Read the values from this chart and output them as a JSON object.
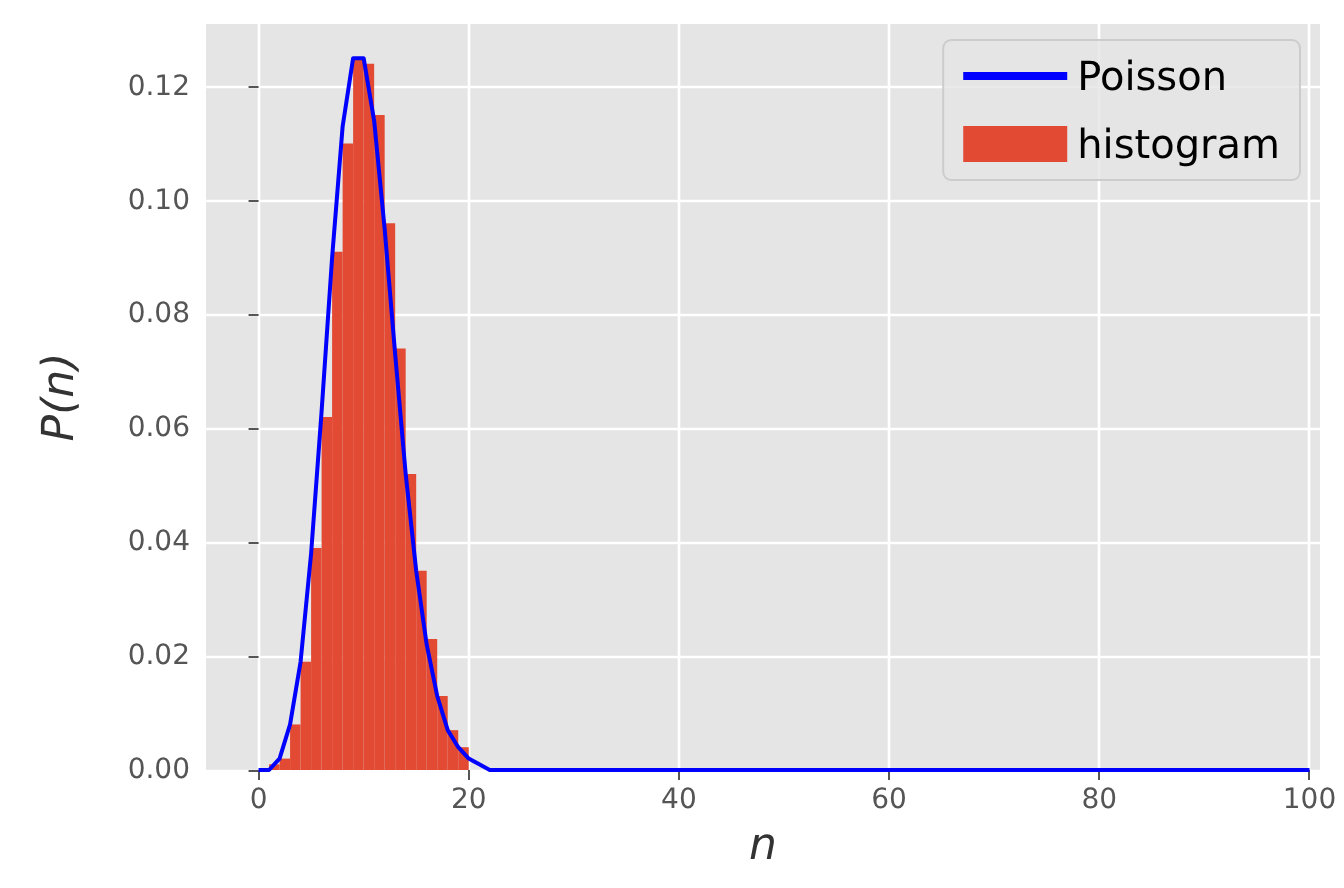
{
  "chart_data": {
    "type": "histogram",
    "xlabel": "n",
    "ylabel": "P(n)",
    "grid": true,
    "legend": "top right",
    "xlim": [
      -5,
      101
    ],
    "ylim": [
      0,
      0.131
    ],
    "xticks": [
      0,
      20,
      40,
      60,
      80,
      100
    ],
    "yticks": [
      {
        "value": 0,
        "label": "0.00"
      },
      {
        "value": 0.02,
        "label": "0.02"
      },
      {
        "value": 0.04,
        "label": "0.04"
      },
      {
        "value": 0.06,
        "label": "0.06"
      },
      {
        "value": 0.08,
        "label": "0.08"
      },
      {
        "value": 0.1,
        "label": "0.10"
      },
      {
        "value": 0.12,
        "label": "0.12"
      }
    ],
    "series": [
      {
        "name": "histogram",
        "color": "#e24a33",
        "bins": [
          1,
          2,
          3,
          4,
          5,
          6,
          7,
          8,
          9,
          10,
          11,
          12,
          13,
          14,
          15,
          16,
          17,
          18,
          19,
          20
        ],
        "values": [
          0.001,
          0.002,
          0.008,
          0.019,
          0.039,
          0.062,
          0.091,
          0.11,
          0.125,
          0.124,
          0.115,
          0.096,
          0.074,
          0.052,
          0.035,
          0.023,
          0.013,
          0.007,
          0.004
        ]
      },
      {
        "type": "line",
        "name": "Poisson",
        "color": "#0000ff",
        "x": [
          0,
          1,
          2,
          3,
          4,
          5,
          6,
          7,
          8,
          9,
          10,
          11,
          12,
          13,
          14,
          15,
          16,
          17,
          18,
          19,
          20,
          21,
          22,
          23,
          24,
          25,
          100
        ],
        "values": [
          0,
          0,
          0.002,
          0.008,
          0.019,
          0.038,
          0.063,
          0.09,
          0.113,
          0.125,
          0.125,
          0.114,
          0.095,
          0.073,
          0.052,
          0.035,
          0.022,
          0.013,
          0.007,
          0.004,
          0.002,
          0.001,
          0,
          0,
          0,
          0,
          0
        ]
      }
    ]
  }
}
